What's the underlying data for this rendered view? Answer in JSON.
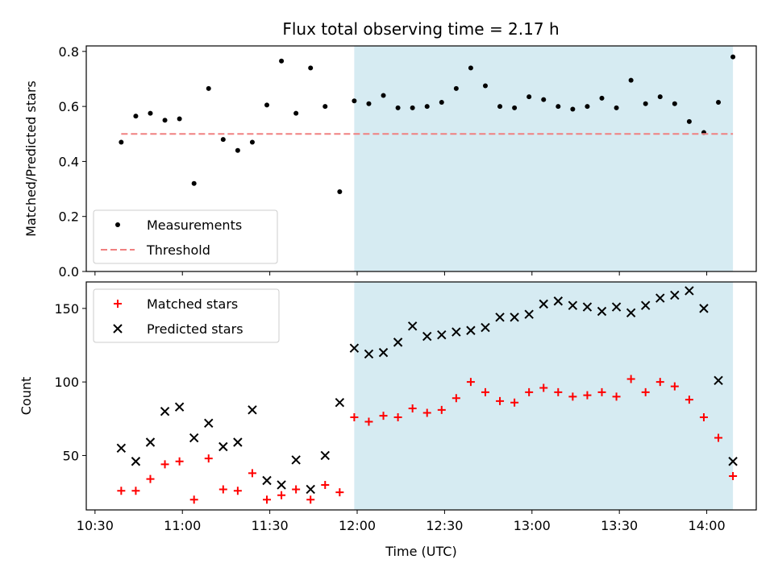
{
  "chart_data": [
    {
      "type": "scatter",
      "title": "Flux total observing time = 2.17 h",
      "xlabel": "",
      "ylabel": "Matched/Predicted stars",
      "ylim": [
        0,
        0.82
      ],
      "yticks": [
        0.0,
        0.2,
        0.4,
        0.6,
        0.8
      ],
      "ytick_labels": [
        "0.0",
        "0.2",
        "0.4",
        "0.6",
        "0.8"
      ],
      "xlim_minutes": [
        627,
        857
      ],
      "shaded_span": [
        "11:59",
        "14:09"
      ],
      "shade_color": "#add8e6",
      "legend": {
        "placement": "lower-left",
        "entries": [
          "Measurements",
          "Threshold"
        ]
      },
      "series": [
        {
          "name": "Measurements",
          "style": "dot",
          "color": "#000000",
          "x": [
            "10:39",
            "10:44",
            "10:49",
            "10:54",
            "10:59",
            "11:04",
            "11:09",
            "11:14",
            "11:19",
            "11:24",
            "11:29",
            "11:34",
            "11:39",
            "11:44",
            "11:49",
            "11:54",
            "11:59",
            "12:04",
            "12:09",
            "12:14",
            "12:19",
            "12:24",
            "12:29",
            "12:34",
            "12:39",
            "12:44",
            "12:49",
            "12:54",
            "12:59",
            "13:04",
            "13:09",
            "13:14",
            "13:19",
            "13:24",
            "13:29",
            "13:34",
            "13:39",
            "13:44",
            "13:49",
            "13:54",
            "13:59",
            "14:04",
            "14:09"
          ],
          "y": [
            0.47,
            0.565,
            0.575,
            0.55,
            0.555,
            0.32,
            0.665,
            0.48,
            0.44,
            0.47,
            0.605,
            0.765,
            0.575,
            0.74,
            0.6,
            0.29,
            0.62,
            0.61,
            0.64,
            0.595,
            0.595,
            0.6,
            0.615,
            0.665,
            0.74,
            0.675,
            0.6,
            0.595,
            0.635,
            0.625,
            0.6,
            0.59,
            0.6,
            0.63,
            0.595,
            0.695,
            0.61,
            0.635,
            0.61,
            0.545,
            0.505,
            0.615,
            0.78
          ]
        },
        {
          "name": "Threshold",
          "style": "dashed-line",
          "color": "#f08080",
          "x": [
            "10:39",
            "14:09"
          ],
          "y": [
            0.5,
            0.5
          ]
        }
      ]
    },
    {
      "type": "scatter",
      "xlabel": "Time (UTC)",
      "ylabel": "Count",
      "ylim": [
        13,
        168
      ],
      "yticks": [
        50,
        100,
        150
      ],
      "ytick_labels": [
        "50",
        "100",
        "150"
      ],
      "xticks": [
        "10:30",
        "11:00",
        "11:30",
        "12:00",
        "12:30",
        "13:00",
        "13:30",
        "14:00"
      ],
      "xlim_minutes": [
        627,
        857
      ],
      "shaded_span": [
        "11:59",
        "14:09"
      ],
      "shade_color": "#add8e6",
      "legend": {
        "placement": "upper-left",
        "entries": [
          "Matched stars",
          "Predicted stars"
        ]
      },
      "series": [
        {
          "name": "Matched stars",
          "style": "plus",
          "color": "#ff0000",
          "x": [
            "10:39",
            "10:44",
            "10:49",
            "10:54",
            "10:59",
            "11:04",
            "11:09",
            "11:14",
            "11:19",
            "11:24",
            "11:29",
            "11:34",
            "11:39",
            "11:44",
            "11:49",
            "11:54",
            "11:59",
            "12:04",
            "12:09",
            "12:14",
            "12:19",
            "12:24",
            "12:29",
            "12:34",
            "12:39",
            "12:44",
            "12:49",
            "12:54",
            "12:59",
            "13:04",
            "13:09",
            "13:14",
            "13:19",
            "13:24",
            "13:29",
            "13:34",
            "13:39",
            "13:44",
            "13:49",
            "13:54",
            "13:59",
            "14:04",
            "14:09"
          ],
          "y": [
            26,
            26,
            34,
            44,
            46,
            20,
            48,
            27,
            26,
            38,
            20,
            23,
            27,
            20,
            30,
            25,
            76,
            73,
            77,
            76,
            82,
            79,
            81,
            89,
            100,
            93,
            87,
            86,
            93,
            96,
            93,
            90,
            91,
            93,
            90,
            102,
            93,
            100,
            97,
            88,
            76,
            62,
            36
          ]
        },
        {
          "name": "Predicted stars",
          "style": "x",
          "color": "#000000",
          "x": [
            "10:39",
            "10:44",
            "10:49",
            "10:54",
            "10:59",
            "11:04",
            "11:09",
            "11:14",
            "11:19",
            "11:24",
            "11:29",
            "11:34",
            "11:39",
            "11:44",
            "11:49",
            "11:54",
            "11:59",
            "12:04",
            "12:09",
            "12:14",
            "12:19",
            "12:24",
            "12:29",
            "12:34",
            "12:39",
            "12:44",
            "12:49",
            "12:54",
            "12:59",
            "13:04",
            "13:09",
            "13:14",
            "13:19",
            "13:24",
            "13:29",
            "13:34",
            "13:39",
            "13:44",
            "13:49",
            "13:54",
            "13:59",
            "14:04",
            "14:09"
          ],
          "y": [
            55,
            46,
            59,
            80,
            83,
            62,
            72,
            56,
            59,
            81,
            33,
            30,
            47,
            27,
            50,
            86,
            123,
            119,
            120,
            127,
            138,
            131,
            132,
            134,
            135,
            137,
            144,
            144,
            146,
            153,
            155,
            152,
            151,
            148,
            151,
            147,
            152,
            157,
            159,
            162,
            150,
            101,
            46
          ]
        }
      ]
    }
  ]
}
